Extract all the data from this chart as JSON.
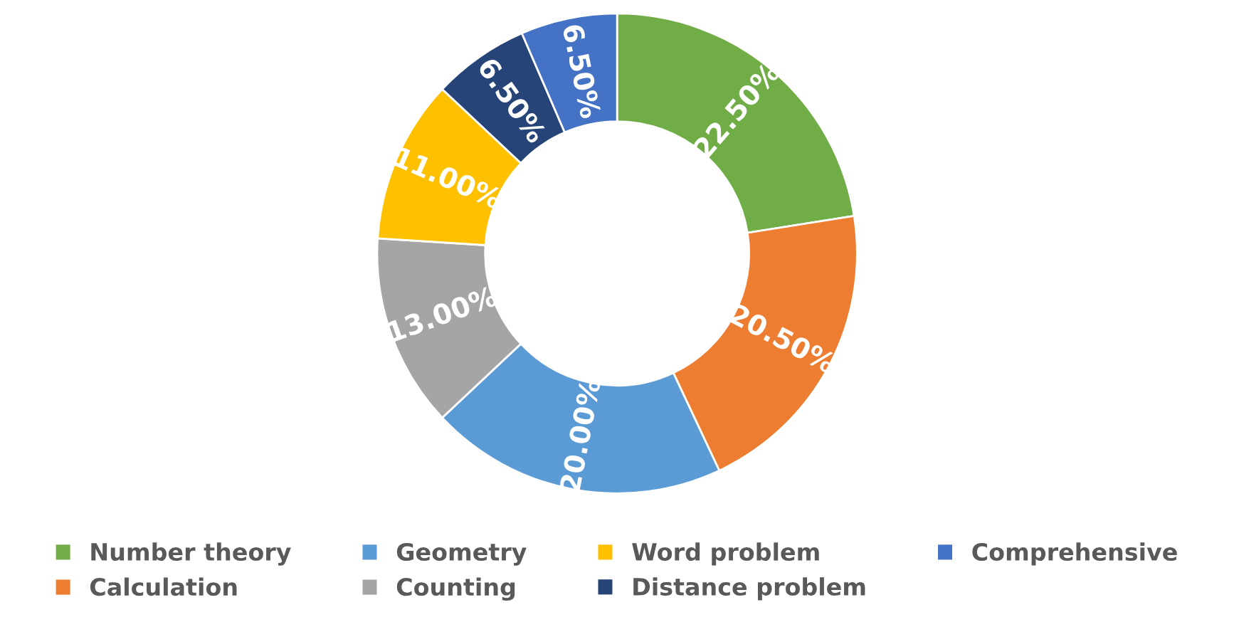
{
  "chart_data": {
    "type": "donut",
    "categories": [
      "Number theory",
      "Calculation",
      "Geometry",
      "Counting",
      "Word problem",
      "Distance problem",
      "Comprehensive"
    ],
    "values": [
      22.5,
      20.5,
      20.0,
      13.0,
      11.0,
      6.5,
      6.5
    ],
    "colors": [
      "#70ad47",
      "#ed7d31",
      "#5b9bd5",
      "#a5a5a5",
      "#ffc000",
      "#264478",
      "#4472c4"
    ],
    "value_labels": [
      "22.50%",
      "20.50%",
      "20.00%",
      "13.00%",
      "11.00%",
      "6.50%",
      "6.50%"
    ],
    "legend": "bottom"
  }
}
